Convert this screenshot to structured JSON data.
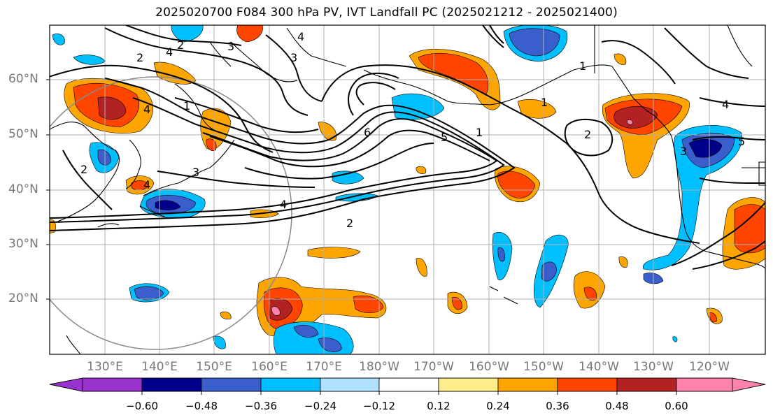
{
  "title": "2025020700 F084 300 hPa PV, IVT Landfall PC (2025021212 - 2025021400)",
  "lat_labels": [
    "60°N",
    "50°N",
    "40°N",
    "30°N",
    "20°N"
  ],
  "lon_labels": [
    "130°E",
    "140°E",
    "150°E",
    "160°E",
    "170°E",
    "180°W",
    "170°W",
    "160°W",
    "150°W",
    "140°W",
    "130°W",
    "120°W"
  ],
  "colorbar": {
    "ticks": [
      "−0.60",
      "−0.48",
      "−0.36",
      "−0.24",
      "−0.12",
      "0.12",
      "0.24",
      "0.36",
      "0.48",
      "0.60"
    ],
    "colors": [
      "#9932CC",
      "#00008B",
      "#3A5FCD",
      "#00BFFF",
      "#B0E2FF",
      "#FFFFFF",
      "#FFEC8B",
      "#FFA500",
      "#FF4500",
      "#B22222",
      "#FF82AB"
    ]
  },
  "contour_labels": [
    "2",
    "4",
    "2",
    "3",
    "4",
    "3",
    "4",
    "1",
    "1",
    "6",
    "5",
    "1",
    "2",
    "1",
    "3",
    "2",
    "4",
    "4",
    "5",
    "3",
    "2",
    "4"
  ]
}
